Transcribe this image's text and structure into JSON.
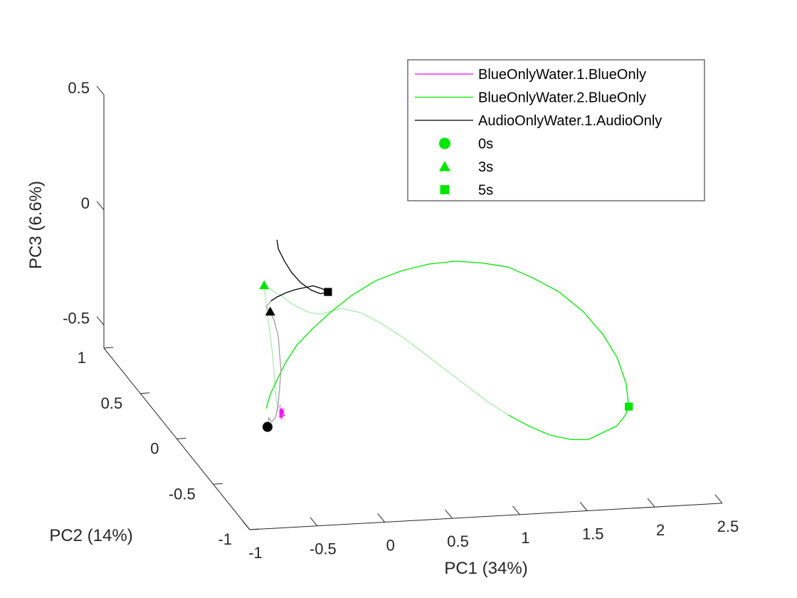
{
  "chart_data": {
    "type": "line",
    "projection": "3d",
    "xlabel": "PC1 (34%)",
    "ylabel": "PC2 (14%)",
    "zlabel": "PC3 (6.6%)",
    "xlim": [
      -1,
      2.5
    ],
    "ylim": [
      -1,
      1
    ],
    "zlim": [
      -0.6,
      0.5
    ],
    "xticks": [
      "-1",
      "-0.5",
      "0",
      "0.5",
      "1",
      "1.5",
      "2",
      "2.5"
    ],
    "xtick_values": [
      -1,
      -0.5,
      0,
      0.5,
      1,
      1.5,
      2,
      2.5
    ],
    "yticks": [
      "-1",
      "-0.5",
      "0",
      "0.5",
      "1"
    ],
    "ytick_values": [
      -1,
      -0.5,
      0,
      0.5,
      1
    ],
    "zticks": [
      "-0.5",
      "0",
      "0.5"
    ],
    "ztick_values": [
      -0.5,
      0,
      0.5
    ],
    "grid": false,
    "legend_position": "top-right",
    "series": [
      {
        "name": "BlueOnlyWater.1.BlueOnly",
        "color": "#ff00ff",
        "faded_color": "#f2a0f2",
        "points": [
          [
            -0.34,
            -0.17,
            -0.42
          ],
          [
            -0.32,
            -0.16,
            -0.41
          ],
          [
            -0.33,
            -0.18,
            -0.44
          ],
          [
            -0.31,
            -0.17,
            -0.43
          ],
          [
            -0.33,
            -0.16,
            -0.45
          ],
          [
            -0.3,
            -0.18,
            -0.42
          ],
          [
            -0.32,
            -0.17,
            -0.47
          ],
          [
            -0.34,
            -0.18,
            -0.44
          ],
          [
            -0.31,
            -0.16,
            -0.43
          ],
          [
            -0.33,
            -0.17,
            -0.46
          ],
          [
            -0.3,
            -0.17,
            -0.44
          ],
          [
            -0.32,
            -0.18,
            -0.42
          ],
          [
            -0.31,
            -0.16,
            -0.47
          ],
          [
            -0.33,
            -0.17,
            -0.43
          ],
          [
            -0.3,
            -0.18,
            -0.45
          ],
          [
            -0.32,
            -0.17,
            -0.46
          ],
          [
            -0.31,
            -0.16,
            -0.44
          ],
          [
            -0.33,
            -0.18,
            -0.42
          ],
          [
            -0.3,
            -0.17,
            -0.45
          ]
        ]
      },
      {
        "name": "BlueOnlyWater.2.BlueOnly",
        "color": "#00e600",
        "faded_color": "#a8ecaa",
        "points": [
          [
            -0.34,
            -0.17,
            -0.44
          ],
          [
            -0.36,
            -0.17,
            -0.36
          ],
          [
            -0.37,
            -0.17,
            -0.28
          ],
          [
            -0.38,
            -0.17,
            -0.2
          ],
          [
            -0.4,
            -0.17,
            -0.1
          ],
          [
            -0.42,
            -0.17,
            -0.02
          ],
          [
            -0.44,
            -0.18,
            0.06
          ],
          [
            -0.45,
            -0.18,
            0.12
          ],
          [
            -0.41,
            -0.22,
            0.11
          ],
          [
            -0.36,
            -0.26,
            0.1
          ],
          [
            -0.31,
            -0.29,
            0.08
          ],
          [
            -0.25,
            -0.3,
            0.06
          ],
          [
            -0.18,
            -0.3,
            0.04
          ],
          [
            -0.1,
            -0.3,
            0.03
          ],
          [
            -0.02,
            -0.3,
            0.04
          ],
          [
            0.06,
            -0.3,
            0.05
          ],
          [
            0.2,
            -0.31,
            0.03
          ],
          [
            0.35,
            -0.32,
            -0.02
          ],
          [
            0.5,
            -0.33,
            -0.08
          ],
          [
            0.65,
            -0.34,
            -0.15
          ],
          [
            0.8,
            -0.35,
            -0.22
          ],
          [
            0.95,
            -0.36,
            -0.29
          ],
          [
            1.1,
            -0.37,
            -0.36
          ],
          [
            1.25,
            -0.38,
            -0.42
          ],
          [
            1.4,
            -0.39,
            -0.47
          ],
          [
            1.55,
            -0.4,
            -0.51
          ],
          [
            1.7,
            -0.41,
            -0.53
          ],
          [
            1.82,
            -0.42,
            -0.53
          ],
          [
            1.92,
            -0.43,
            -0.5
          ],
          [
            2.02,
            -0.44,
            -0.47
          ],
          [
            2.08,
            -0.45,
            -0.42
          ],
          [
            2.1,
            -0.46,
            -0.38
          ],
          [
            2.08,
            -0.46,
            -0.28
          ],
          [
            2.02,
            -0.45,
            -0.17
          ],
          [
            1.92,
            -0.44,
            -0.07
          ],
          [
            1.78,
            -0.43,
            0.03
          ],
          [
            1.6,
            -0.42,
            0.12
          ],
          [
            1.42,
            -0.41,
            0.18
          ],
          [
            1.24,
            -0.4,
            0.23
          ],
          [
            1.05,
            -0.39,
            0.25
          ],
          [
            0.86,
            -0.38,
            0.26
          ],
          [
            0.67,
            -0.37,
            0.25
          ],
          [
            0.48,
            -0.35,
            0.22
          ],
          [
            0.3,
            -0.32,
            0.17
          ],
          [
            0.14,
            -0.29,
            0.1
          ],
          [
            0.0,
            -0.26,
            0.02
          ],
          [
            -0.12,
            -0.23,
            -0.06
          ],
          [
            -0.22,
            -0.2,
            -0.14
          ],
          [
            -0.3,
            -0.19,
            -0.22
          ],
          [
            -0.36,
            -0.18,
            -0.3
          ],
          [
            -0.4,
            -0.17,
            -0.36
          ],
          [
            -0.43,
            -0.17,
            -0.42
          ]
        ]
      },
      {
        "name": "AudioOnlyWater.1.AudioOnly",
        "color": "#000000",
        "faded_color": "#a0a0a0",
        "points": [
          [
            -0.42,
            -0.17,
            -0.5
          ],
          [
            -0.41,
            -0.17,
            -0.46
          ],
          [
            -0.39,
            -0.17,
            -0.48
          ],
          [
            -0.36,
            -0.17,
            -0.46
          ],
          [
            -0.34,
            -0.17,
            -0.4
          ],
          [
            -0.33,
            -0.17,
            -0.33
          ],
          [
            -0.32,
            -0.17,
            -0.26
          ],
          [
            -0.33,
            -0.17,
            -0.19
          ],
          [
            -0.34,
            -0.17,
            -0.11
          ],
          [
            -0.37,
            -0.17,
            -0.04
          ],
          [
            -0.4,
            -0.17,
            0.0
          ],
          [
            -0.43,
            -0.17,
            0.02
          ],
          [
            -0.4,
            -0.18,
            0.05
          ],
          [
            -0.36,
            -0.19,
            0.07
          ],
          [
            -0.3,
            -0.2,
            0.09
          ],
          [
            -0.24,
            -0.22,
            0.11
          ],
          [
            -0.18,
            -0.23,
            0.12
          ],
          [
            -0.12,
            -0.24,
            0.13
          ],
          [
            -0.06,
            -0.25,
            0.12
          ],
          [
            -0.01,
            -0.24,
            0.1
          ],
          [
            -0.06,
            -0.23,
            0.09
          ],
          [
            -0.12,
            -0.21,
            0.1
          ],
          [
            -0.19,
            -0.2,
            0.13
          ],
          [
            -0.25,
            -0.19,
            0.17
          ],
          [
            -0.3,
            -0.18,
            0.22
          ],
          [
            -0.34,
            -0.17,
            0.27
          ],
          [
            -0.35,
            -0.17,
            0.31
          ]
        ]
      }
    ],
    "markers": [
      {
        "name": "0s",
        "shape": "circle",
        "color": "#00e600",
        "show_on_chart": false,
        "point": [
          0,
          0,
          0
        ]
      },
      {
        "name": "3s",
        "shape": "triangle",
        "color": "#00e600",
        "show_on_chart": true,
        "point": [
          -0.45,
          -0.18,
          0.12
        ]
      },
      {
        "name": "5s",
        "shape": "square",
        "color": "#00e600",
        "show_on_chart": true,
        "point": [
          2.1,
          -0.46,
          -0.38
        ]
      },
      {
        "name": "",
        "shape": "circle",
        "color": "#000000",
        "show_on_chart": true,
        "point": [
          -0.42,
          -0.17,
          -0.5
        ]
      },
      {
        "name": "",
        "shape": "triangle",
        "color": "#000000",
        "show_on_chart": true,
        "point": [
          -0.4,
          -0.17,
          0.0
        ]
      },
      {
        "name": "",
        "shape": "square",
        "color": "#000000",
        "show_on_chart": true,
        "point": [
          -0.01,
          -0.24,
          0.1
        ]
      }
    ],
    "legend": [
      {
        "label": "BlueOnlyWater.1.BlueOnly",
        "kind": "line",
        "color": "#ff00ff"
      },
      {
        "label": "BlueOnlyWater.2.BlueOnly",
        "kind": "line",
        "color": "#00e600"
      },
      {
        "label": "AudioOnlyWater.1.AudioOnly",
        "kind": "line",
        "color": "#000000"
      },
      {
        "label": "0s",
        "kind": "circle",
        "color": "#00e600"
      },
      {
        "label": "3s",
        "kind": "triangle",
        "color": "#00e600"
      },
      {
        "label": "5s",
        "kind": "square",
        "color": "#00e600"
      }
    ]
  }
}
